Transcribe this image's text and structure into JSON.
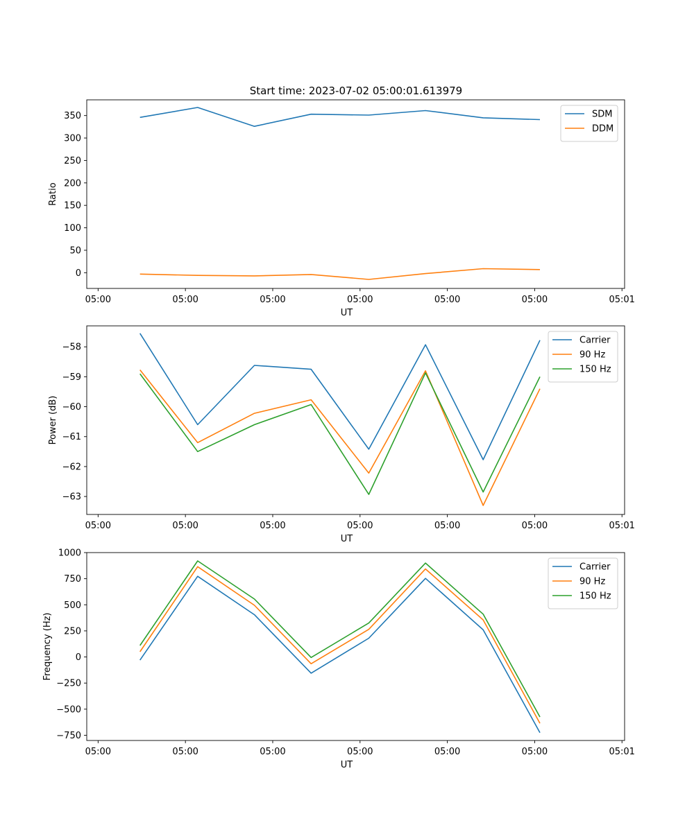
{
  "figure": {
    "title": "Start time: 2023-07-02 05:00:01.613979"
  },
  "chart_data": [
    {
      "type": "line",
      "title": "Start time: 2023-07-02 05:00:01.613979",
      "xlabel": "UT",
      "ylabel": "Ratio",
      "x_tick_labels": [
        "05:00",
        "05:00",
        "05:00",
        "05:00",
        "05:00",
        "05:00",
        "05:01"
      ],
      "x_tick_positions": [
        0,
        1,
        2,
        3,
        4,
        5,
        6
      ],
      "xlim": [
        -0.13,
        6.03
      ],
      "x": [
        0.48,
        1.14,
        1.79,
        2.44,
        3.1,
        3.75,
        4.41,
        5.06
      ],
      "ylim": [
        -35,
        385
      ],
      "y_ticks": [
        0,
        50,
        100,
        150,
        200,
        250,
        300,
        350
      ],
      "y_tick_labels": [
        "0",
        "50",
        "100",
        "150",
        "200",
        "250",
        "300",
        "350"
      ],
      "legend_position": "upper-right",
      "series": [
        {
          "name": "SDM",
          "color": "#1f77b4",
          "values": [
            346,
            368,
            326,
            353,
            351,
            361,
            345,
            341
          ]
        },
        {
          "name": "DDM",
          "color": "#ff7f0e",
          "values": [
            -3,
            -6,
            -7,
            -4,
            -15,
            -2,
            9,
            7
          ]
        }
      ]
    },
    {
      "type": "line",
      "xlabel": "UT",
      "ylabel": "Power (dB)",
      "x_tick_labels": [
        "05:00",
        "05:00",
        "05:00",
        "05:00",
        "05:00",
        "05:00",
        "05:01"
      ],
      "x_tick_positions": [
        0,
        1,
        2,
        3,
        4,
        5,
        6
      ],
      "xlim": [
        -0.13,
        6.03
      ],
      "x": [
        0.48,
        1.14,
        1.79,
        2.44,
        3.1,
        3.75,
        4.41,
        5.06
      ],
      "ylim": [
        -63.6,
        -57.3
      ],
      "y_ticks": [
        -63,
        -62,
        -61,
        -60,
        -59,
        -58
      ],
      "y_tick_labels": [
        "−63",
        "−62",
        "−61",
        "−60",
        "−59",
        "−58"
      ],
      "legend_position": "upper-right",
      "series": [
        {
          "name": "Carrier",
          "color": "#1f77b4",
          "values": [
            -57.55,
            -60.6,
            -58.62,
            -58.75,
            -61.42,
            -57.93,
            -61.77,
            -57.78
          ]
        },
        {
          "name": "90 Hz",
          "color": "#ff7f0e",
          "values": [
            -58.77,
            -61.2,
            -60.22,
            -59.77,
            -62.22,
            -58.8,
            -63.3,
            -59.4
          ]
        },
        {
          "name": "150 Hz",
          "color": "#2ca02c",
          "values": [
            -58.9,
            -61.5,
            -60.6,
            -59.93,
            -62.93,
            -58.87,
            -62.85,
            -59.0
          ]
        }
      ]
    },
    {
      "type": "line",
      "xlabel": "UT",
      "ylabel": "Frequency (Hz)",
      "x_tick_labels": [
        "05:00",
        "05:00",
        "05:00",
        "05:00",
        "05:00",
        "05:00",
        "05:01"
      ],
      "x_tick_positions": [
        0,
        1,
        2,
        3,
        4,
        5,
        6
      ],
      "xlim": [
        -0.13,
        6.03
      ],
      "x": [
        0.48,
        1.14,
        1.79,
        2.44,
        3.1,
        3.75,
        4.41,
        5.06
      ],
      "ylim": [
        -800,
        1000
      ],
      "y_ticks": [
        -750,
        -500,
        -250,
        0,
        250,
        500,
        750,
        1000
      ],
      "y_tick_labels": [
        "−750",
        "−500",
        "−250",
        "0",
        "250",
        "500",
        "750",
        "1000"
      ],
      "legend_position": "upper-right",
      "series": [
        {
          "name": "Carrier",
          "color": "#1f77b4",
          "values": [
            -30,
            773,
            405,
            -155,
            180,
            753,
            260,
            -725
          ]
        },
        {
          "name": "90 Hz",
          "color": "#ff7f0e",
          "values": [
            50,
            865,
            495,
            -65,
            265,
            843,
            355,
            -635
          ]
        },
        {
          "name": "150 Hz",
          "color": "#2ca02c",
          "values": [
            110,
            920,
            555,
            -5,
            325,
            900,
            410,
            -575
          ]
        }
      ]
    }
  ]
}
